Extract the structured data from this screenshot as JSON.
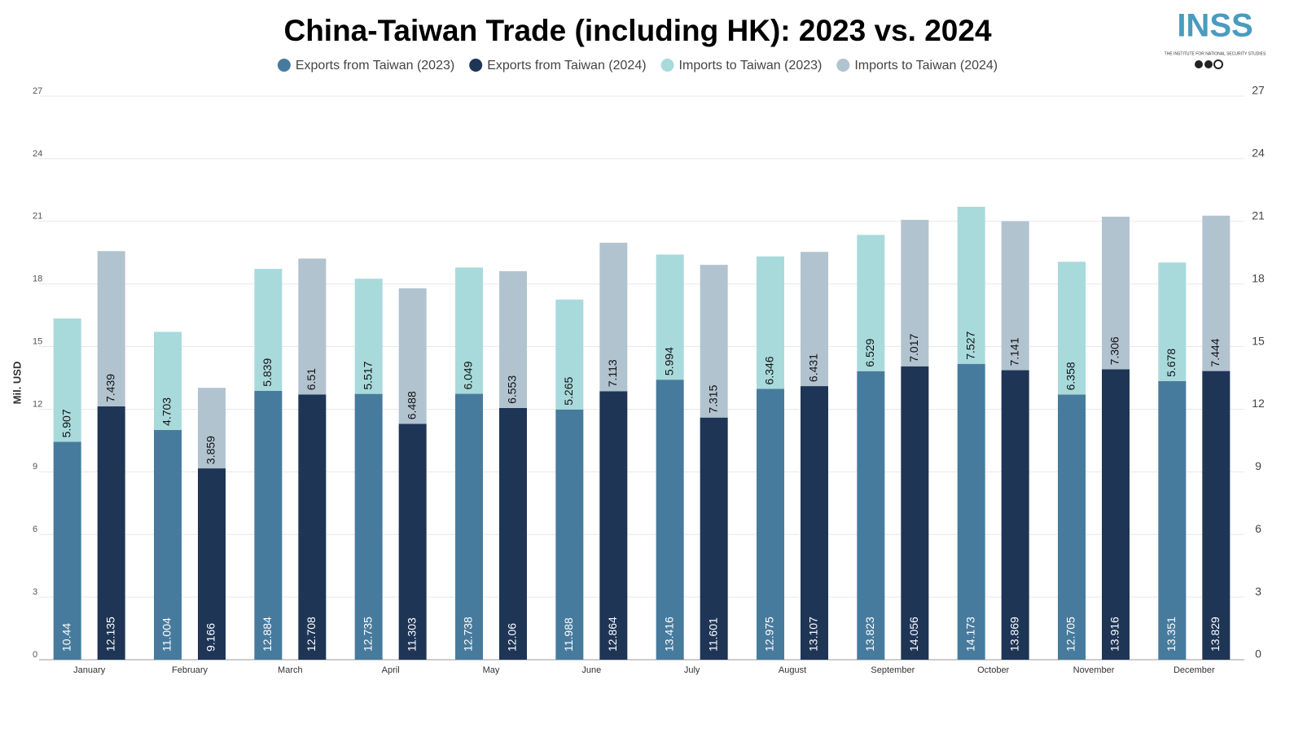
{
  "logo": {
    "text": "INSS",
    "subtitle": "THE INSTITUTE FOR NATIONAL SECURITY STUDIES"
  },
  "chart_data": {
    "type": "bar",
    "title": "China-Taiwan Trade (including HK): 2023 vs. 2024",
    "y_label": "Mil. USD",
    "categories": [
      "January",
      "February",
      "March",
      "April",
      "May",
      "June",
      "July",
      "August",
      "September",
      "October",
      "November",
      "December"
    ],
    "series": [
      {
        "name": "Exports from Taiwan (2023)",
        "color": "#477b9e",
        "values": [
          10.44,
          11.004,
          12.884,
          12.735,
          12.738,
          11.988,
          13.416,
          12.975,
          13.823,
          14.173,
          12.705,
          13.351
        ]
      },
      {
        "name": "Exports from Taiwan (2024)",
        "color": "#1e3556",
        "values": [
          12.135,
          9.166,
          12.708,
          11.303,
          12.06,
          12.864,
          11.601,
          13.107,
          14.056,
          13.869,
          13.916,
          13.829
        ]
      },
      {
        "name": "Imports to Taiwan (2023)",
        "color": "#a8dadc",
        "values": [
          5.907,
          4.703,
          5.839,
          5.517,
          6.049,
          5.265,
          5.994,
          6.346,
          6.529,
          7.527,
          6.358,
          5.678
        ]
      },
      {
        "name": "Imports to Taiwan (2024)",
        "color": "#b2c3d0",
        "values": [
          7.439,
          3.859,
          6.51,
          6.488,
          6.553,
          7.113,
          7.315,
          6.431,
          7.017,
          7.141,
          7.306,
          7.444
        ]
      }
    ],
    "stacked": true,
    "ylim": [
      0,
      27
    ],
    "yticks": [
      0,
      3,
      6,
      9,
      12,
      15,
      18,
      21,
      24,
      27
    ],
    "y2lim": [
      0,
      27
    ],
    "y2ticks": [
      0,
      3,
      6,
      9,
      12,
      15,
      18,
      21,
      24,
      27
    ],
    "grid": true,
    "legend": "top"
  }
}
